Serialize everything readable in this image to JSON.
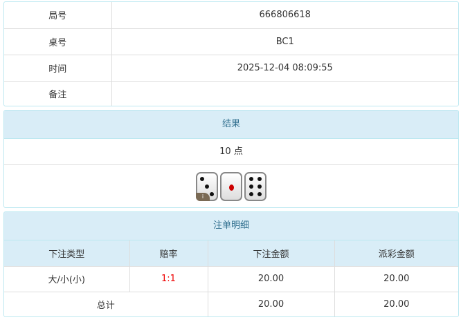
{
  "info": {
    "rows": [
      {
        "label": "局号",
        "value": "666806618"
      },
      {
        "label": "桌号",
        "value": "BC1"
      },
      {
        "label": "时间",
        "value": "2025-12-04 08:09:55"
      },
      {
        "label": "备注",
        "value": ""
      }
    ]
  },
  "result": {
    "title": "结果",
    "points": "10 点",
    "dice": [
      3,
      1,
      6
    ],
    "info_badge": "i"
  },
  "bets": {
    "title": "注单明细",
    "headers": [
      "下注类型",
      "赔率",
      "下注金额",
      "派彩金额"
    ],
    "rows": [
      {
        "type": "大/小(小)",
        "odds": "1:1",
        "amount": "20.00",
        "payout": "20.00"
      }
    ],
    "total": {
      "label": "总计",
      "amount": "20.00",
      "payout": "20.00"
    }
  },
  "colors": {
    "header_bg": "#d9edf7",
    "header_text": "#31708f",
    "odds": "#ee0000",
    "pip_one": "#cc0000"
  }
}
